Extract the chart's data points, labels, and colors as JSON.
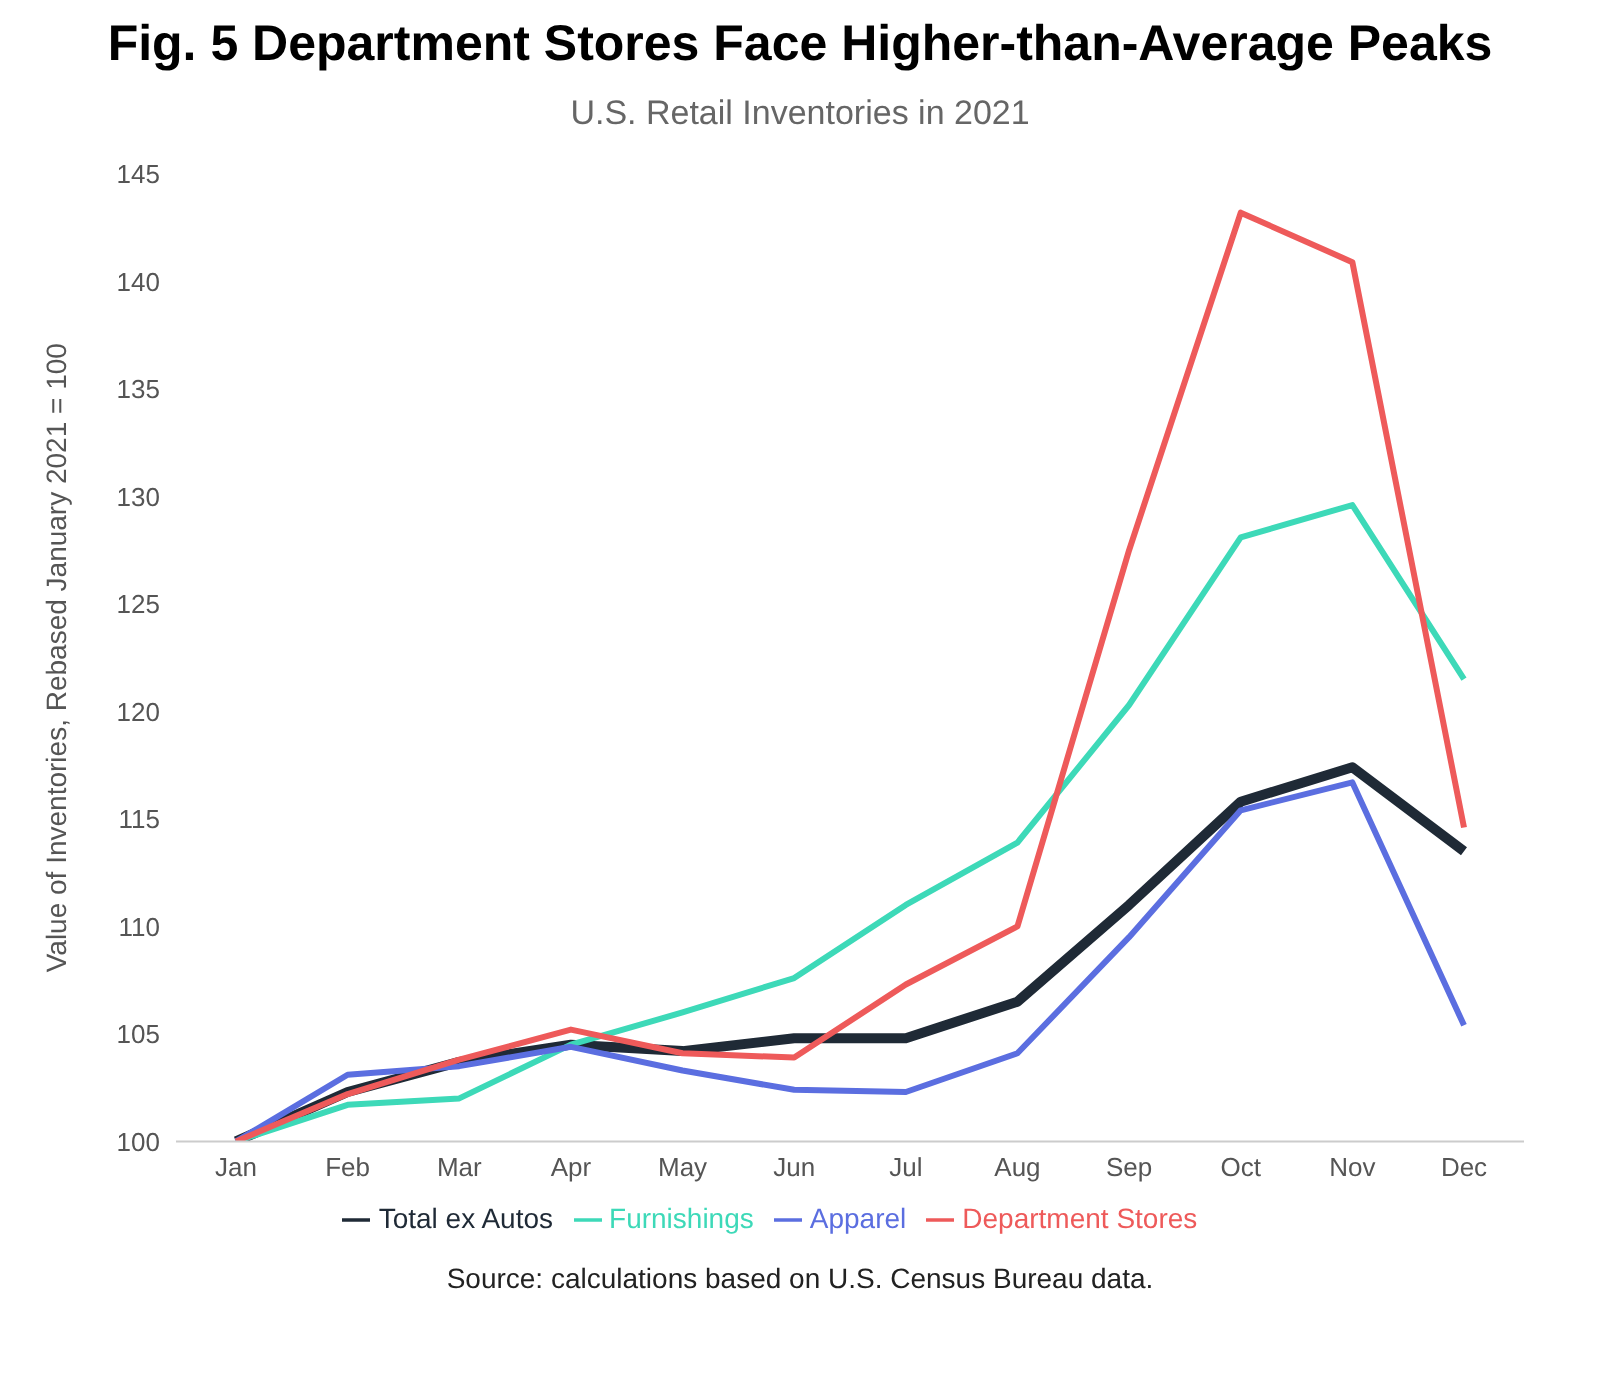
{
  "chart_data": {
    "type": "line",
    "title": "Fig. 5 Department Stores Face Higher-than-Average Peaks",
    "subtitle": "U.S. Retail Inventories in 2021",
    "ylabel": "Value of Inventories, Rebased January 2021 = 100",
    "categories": [
      "Jan",
      "Feb",
      "Mar",
      "Apr",
      "May",
      "Jun",
      "Jul",
      "Aug",
      "Sep",
      "Oct",
      "Nov",
      "Dec"
    ],
    "series": [
      {
        "name": "Total ex Autos",
        "color": "#1f2a36",
        "values": [
          100,
          102.3,
          103.7,
          104.5,
          104.2,
          104.8,
          104.8,
          106.5,
          111,
          115.8,
          117.4,
          113.5
        ]
      },
      {
        "name": "Furnishings",
        "color": "#3dd9b8",
        "values": [
          100,
          101.7,
          102,
          104.5,
          106,
          107.6,
          111,
          113.9,
          120.3,
          128.1,
          129.6,
          121.5
        ]
      },
      {
        "name": "Apparel",
        "color": "#5b6ee0",
        "values": [
          100,
          103.1,
          103.5,
          104.4,
          103.3,
          102.4,
          102.3,
          104.1,
          109.5,
          115.4,
          116.7,
          105.4
        ]
      },
      {
        "name": "Department Stores",
        "color": "#ee5a5a",
        "values": [
          100,
          102.2,
          103.8,
          105.2,
          104.1,
          103.9,
          107.3,
          110,
          127.5,
          143.2,
          140.9,
          114.6
        ]
      }
    ],
    "ylim": [
      100,
      145
    ],
    "yticks": [
      100,
      105,
      110,
      115,
      120,
      125,
      130,
      135,
      140,
      145
    ],
    "grid": false,
    "legend": "bottom",
    "marker": "none",
    "line_style": "solid",
    "annotations": [
      "Source: calculations based on U.S. Census Bureau data."
    ]
  }
}
